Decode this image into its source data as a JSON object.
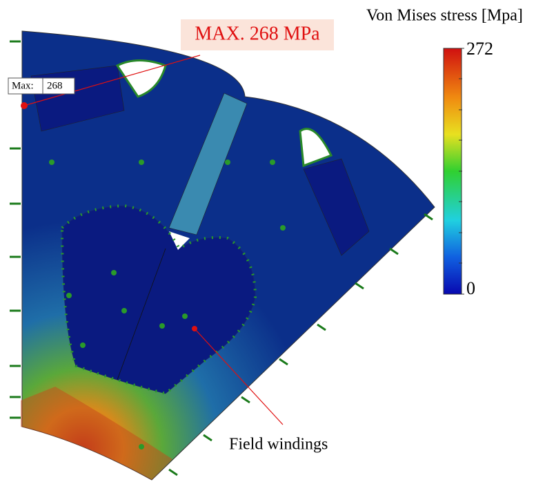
{
  "legend": {
    "title": "Von Mises stress [Mpa]",
    "max": 272,
    "min": 0
  },
  "annotations": {
    "max_callout": "MAX. 268 MPa",
    "probe_label": "Max:",
    "probe_value": 268,
    "region_label": "Field windings"
  }
}
